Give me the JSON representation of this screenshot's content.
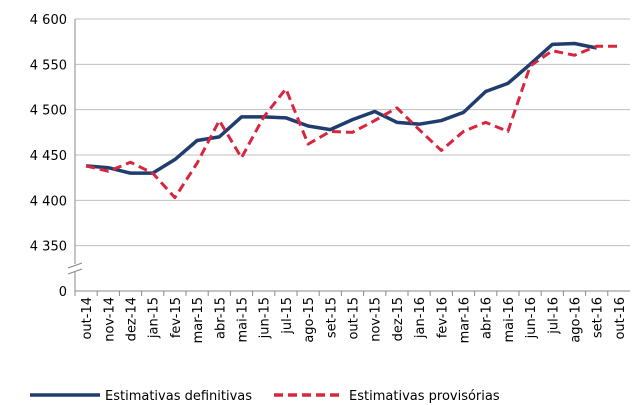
{
  "chart_data": {
    "type": "line",
    "categories": [
      "out-14",
      "nov-14",
      "dez-14",
      "jan-15",
      "fev-15",
      "mar-15",
      "abr-15",
      "mai-15",
      "jun-15",
      "jul-15",
      "ago-15",
      "set-15",
      "out-15",
      "nov-15",
      "dez-15",
      "jan-16",
      "fev-16",
      "mar-16",
      "abr-16",
      "mai-16",
      "jun-16",
      "jul-16",
      "ago-16",
      "set-16",
      "out-16"
    ],
    "series": [
      {
        "name": "Estimativas definitivas",
        "color": "#1f3d6e",
        "dash": false,
        "values": [
          4438,
          4436,
          4430,
          4430,
          4445,
          4466,
          4470,
          4492,
          4492,
          4491,
          4482,
          4478,
          4489,
          4498,
          4486,
          4484,
          4488,
          4497,
          4520,
          4529,
          4550,
          4572,
          4573,
          4568,
          null
        ]
      },
      {
        "name": "Estimativas provisórias",
        "color": "#d7263d",
        "dash": true,
        "values": [
          4438,
          4432,
          4442,
          4430,
          4403,
          4441,
          4488,
          4447,
          4492,
          4523,
          4462,
          4476,
          4475,
          4488,
          4502,
          4478,
          4455,
          4476,
          4486,
          4476,
          4548,
          4565,
          4560,
          4570,
          4570
        ]
      }
    ],
    "ylim": [
      0,
      4600
    ],
    "y_break": true,
    "yticks": [
      {
        "value": 0,
        "label": "0"
      },
      {
        "value": 4350,
        "label": "4 350"
      },
      {
        "value": 4400,
        "label": "4 400"
      },
      {
        "value": 4450,
        "label": "4 450"
      },
      {
        "value": 4500,
        "label": "4 500"
      },
      {
        "value": 4550,
        "label": "4 550"
      },
      {
        "value": 4600,
        "label": "4 600"
      }
    ],
    "grid": true
  }
}
